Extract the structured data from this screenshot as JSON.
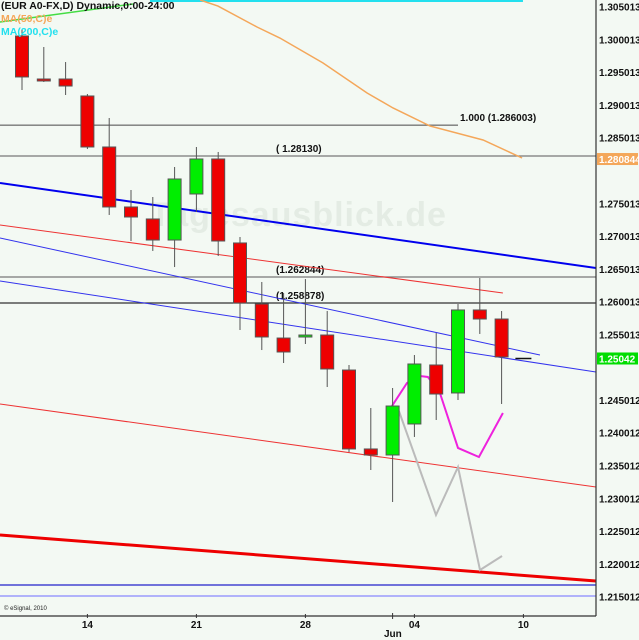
{
  "chart_data": {
    "type": "candlestick",
    "title": "(EUR A0-FX,D) Dynamic,0:00-24:00",
    "legend": [
      {
        "label": "MA(50,C)e",
        "color": "#f4a75a"
      },
      {
        "label": "MA(200,C)e",
        "color": "#22e0ee"
      }
    ],
    "watermark": "Tagesausblick.de",
    "copyright": "© eSignal, 2010",
    "ylim": [
      1.211,
      1.3051
    ],
    "y_ticks": [
      "1.305013",
      "1.300013",
      "1.295013",
      "1.290013",
      "1.285013",
      "1.275013",
      "1.270013",
      "1.265013",
      "1.260013",
      "1.255013",
      "1.245012",
      "1.240012",
      "1.235012",
      "1.230012",
      "1.225012",
      "1.220012",
      "1.215012"
    ],
    "x_ticks": [
      {
        "label": "14",
        "bar": 3
      },
      {
        "label": "21",
        "bar": 8
      },
      {
        "label": "28",
        "bar": 13
      },
      {
        "label": "04",
        "bar": 18
      },
      {
        "label": "10",
        "bar": 23
      }
    ],
    "month_label": {
      "label": "Jun",
      "bar": 17
    },
    "colors": {
      "up": "#00ee00",
      "down": "#ee0000",
      "background": "#f3f9f3"
    },
    "candles": [
      {
        "o": 1.29961,
        "h": 1.30052,
        "l": 1.29137,
        "c": 1.29336
      },
      {
        "o": 1.29305,
        "h": 1.29793,
        "l": 1.29259,
        "c": 1.293
      },
      {
        "o": 1.29305,
        "h": 1.29564,
        "l": 1.29061,
        "c": 1.29198
      },
      {
        "o": 1.29046,
        "h": 1.29076,
        "l": 1.28237,
        "c": 1.28268
      },
      {
        "o": 1.28268,
        "h": 1.2871,
        "l": 1.27231,
        "c": 1.27353
      },
      {
        "o": 1.27353,
        "h": 1.27612,
        "l": 1.26834,
        "c": 1.272
      },
      {
        "o": 1.2717,
        "h": 1.27505,
        "l": 1.26682,
        "c": 1.26849
      },
      {
        "o": 1.26849,
        "h": 1.27963,
        "l": 1.26437,
        "c": 1.2778
      },
      {
        "o": 1.27551,
        "h": 1.28268,
        "l": 1.27276,
        "c": 1.28085
      },
      {
        "o": 1.28085,
        "h": 1.28192,
        "l": 1.26605,
        "c": 1.26834
      },
      {
        "o": 1.26804,
        "h": 1.26895,
        "l": 1.25477,
        "c": 1.25888
      },
      {
        "o": 1.25873,
        "h": 1.26209,
        "l": 1.25171,
        "c": 1.2537
      },
      {
        "o": 1.25354,
        "h": 1.26041,
        "l": 1.24973,
        "c": 1.25141
      },
      {
        "o": 1.2537,
        "h": 1.26254,
        "l": 1.25263,
        "c": 1.254
      },
      {
        "o": 1.254,
        "h": 1.25766,
        "l": 1.24607,
        "c": 1.24882
      },
      {
        "o": 1.24866,
        "h": 1.24943,
        "l": 1.23616,
        "c": 1.23662
      },
      {
        "o": 1.23662,
        "h": 1.24287,
        "l": 1.23341,
        "c": 1.2357
      },
      {
        "o": 1.2357,
        "h": 1.24592,
        "l": 1.22853,
        "c": 1.24317
      },
      {
        "o": 1.24043,
        "h": 1.25095,
        "l": 1.23845,
        "c": 1.24958
      },
      {
        "o": 1.24943,
        "h": 1.25431,
        "l": 1.24104,
        "c": 1.245
      },
      {
        "o": 1.24516,
        "h": 1.25873,
        "l": 1.24409,
        "c": 1.25782
      },
      {
        "o": 1.25782,
        "h": 1.2627,
        "l": 1.25416,
        "c": 1.25644
      },
      {
        "o": 1.25644,
        "h": 1.25766,
        "l": 1.24348,
        "c": 1.25065
      },
      {
        "o": 1.25042,
        "h": 1.25042,
        "l": 1.25042,
        "c": 1.25042
      }
    ],
    "horizontal_lines": [
      {
        "price": 1.286003,
        "label": "1.000 (1.286003)",
        "color": "#777777",
        "end_bar": 20.0
      },
      {
        "price": 1.2813,
        "label": "( 1.28130)",
        "color": "#777777"
      },
      {
        "price": 1.262844,
        "label": "(1.262844)",
        "color": "#777777"
      },
      {
        "price": 1.258878,
        "label": "(1.258878)",
        "color": "#333333"
      },
      {
        "price": 1.21587,
        "color": "#2222cc"
      },
      {
        "price": 1.21419,
        "color": "#8888ff"
      }
    ],
    "trend_lines": [
      {
        "name": "thick-blue",
        "color": "#0000ee",
        "width": 2,
        "p": [
          [
            -1.01,
            1.27719
          ],
          [
            26.33,
            1.26422
          ]
        ]
      },
      {
        "name": "thin-red-upper",
        "color": "#ee3333",
        "width": 1,
        "p": [
          [
            -1.01,
            1.27078
          ],
          [
            22.06,
            1.2604
          ]
        ]
      },
      {
        "name": "thin-blue-a",
        "color": "#3333ee",
        "width": 1,
        "p": [
          [
            -1.01,
            1.2688
          ],
          [
            23.76,
            1.25095
          ]
        ]
      },
      {
        "name": "thin-blue-b",
        "color": "#3333ee",
        "width": 1,
        "p": [
          [
            -1.01,
            1.26224
          ],
          [
            26.33,
            1.24836
          ]
        ]
      },
      {
        "name": "thin-red-lower",
        "color": "#ee3333",
        "width": 1,
        "p": [
          [
            -1.01,
            1.24348
          ],
          [
            26.33,
            1.23082
          ]
        ]
      },
      {
        "name": "thick-red",
        "color": "#ee0000",
        "width": 3,
        "p": [
          [
            -1.01,
            1.2235
          ],
          [
            26.33,
            1.21648
          ]
        ]
      },
      {
        "name": "green-line",
        "color": "#44dd44",
        "width": 1.5,
        "p": [
          [
            -1.01,
            1.30174
          ],
          [
            5.09,
            1.30449
          ]
        ]
      }
    ],
    "ma50": {
      "color": "#f4a75a",
      "p": [
        [
          8.17,
          1.3051
        ],
        [
          8.99,
          1.30418
        ],
        [
          10.78,
          1.30098
        ],
        [
          11.83,
          1.2993
        ],
        [
          13.81,
          1.29549
        ],
        [
          15.83,
          1.29091
        ],
        [
          17.02,
          1.28863
        ],
        [
          18.72,
          1.28588
        ],
        [
          21.15,
          1.28375
        ],
        [
          22.94,
          1.281
        ]
      ]
    },
    "ma200": {
      "color": "#22e0ee",
      "p": [
        [
          5.87,
          1.30495
        ],
        [
          22.98,
          1.30495
        ]
      ]
    },
    "projection_magenta": {
      "color": "#ee22dd",
      "p": [
        [
          16.97,
          1.24317
        ],
        [
          17.66,
          1.24668
        ],
        [
          18.26,
          1.24775
        ],
        [
          18.62,
          1.2476
        ],
        [
          19.17,
          1.24516
        ],
        [
          20.0,
          1.23677
        ],
        [
          20.96,
          1.23539
        ],
        [
          22.06,
          1.24211
        ]
      ]
    },
    "projection_gray": {
      "color": "#bbbbbb",
      "p": [
        [
          17.29,
          1.24241
        ],
        [
          18.99,
          1.22655
        ],
        [
          20.0,
          1.23387
        ],
        [
          21.01,
          1.21816
        ],
        [
          22.02,
          1.22029
        ]
      ]
    },
    "price_markers": [
      {
        "label": "1.280844",
        "price": 1.280844,
        "bg": "#f4a75a",
        "fg": "#ffffff"
      },
      {
        "label": "1.25042",
        "price": 1.25042,
        "bg": "#00dd00",
        "fg": "#ffffff"
      }
    ]
  }
}
